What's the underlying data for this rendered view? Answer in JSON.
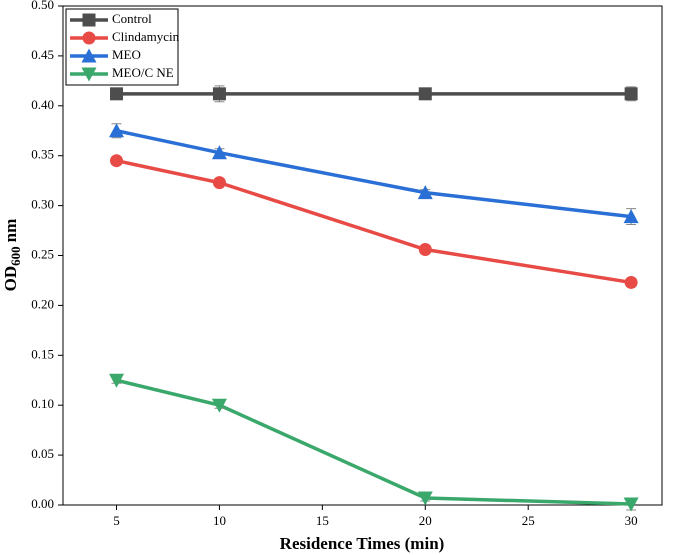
{
  "chart_data": {
    "type": "line",
    "x_label": "Residence Times (min)",
    "y_label": {
      "main": "OD",
      "sub": "600",
      "unit": "nm"
    },
    "x": [
      5,
      10,
      20,
      30
    ],
    "xlim": [
      2.4,
      31.5
    ],
    "xticks": [
      5,
      10,
      15,
      20,
      25,
      30
    ],
    "ylim": [
      0,
      0.5
    ],
    "yticks": [
      {
        "value": 0,
        "label": "0.00"
      },
      {
        "value": 0.05,
        "label": "0.05"
      },
      {
        "value": 0.1,
        "label": "0.10"
      },
      {
        "value": 0.15,
        "label": "0.15"
      },
      {
        "value": 0.2,
        "label": "0.20"
      },
      {
        "value": 0.25,
        "label": "0.25"
      },
      {
        "value": 0.3,
        "label": "0.30"
      },
      {
        "value": 0.35,
        "label": "0.35"
      },
      {
        "value": 0.4,
        "label": "0.40"
      },
      {
        "value": 0.45,
        "label": "0.45"
      },
      {
        "value": 0.5,
        "label": "0.50"
      }
    ],
    "legend": "top-left",
    "series": [
      {
        "name": "Control",
        "color": "#4d4d4d",
        "marker": "square",
        "values": [
          0.412,
          0.412,
          0.412,
          0.412
        ],
        "errors": [
          0.005,
          0.008,
          0.003,
          0.007
        ]
      },
      {
        "name": "Clindamycin",
        "color": "#e84a46",
        "marker": "circle",
        "values": [
          0.345,
          0.323,
          0.256,
          0.223
        ],
        "errors": [
          0.003,
          0.003,
          0.003,
          0.004
        ]
      },
      {
        "name": "MEO",
        "color": "#2a6fd6",
        "marker": "triangle-up",
        "values": [
          0.375,
          0.353,
          0.313,
          0.289
        ],
        "errors": [
          0.007,
          0.004,
          0.003,
          0.008
        ]
      },
      {
        "name": "MEO/C NE",
        "color": "#3aa86a",
        "marker": "triangle-down",
        "values": [
          0.125,
          0.1,
          0.007,
          0.001
        ],
        "errors": [
          0.003,
          0.003,
          0.003,
          0.006
        ]
      }
    ]
  }
}
